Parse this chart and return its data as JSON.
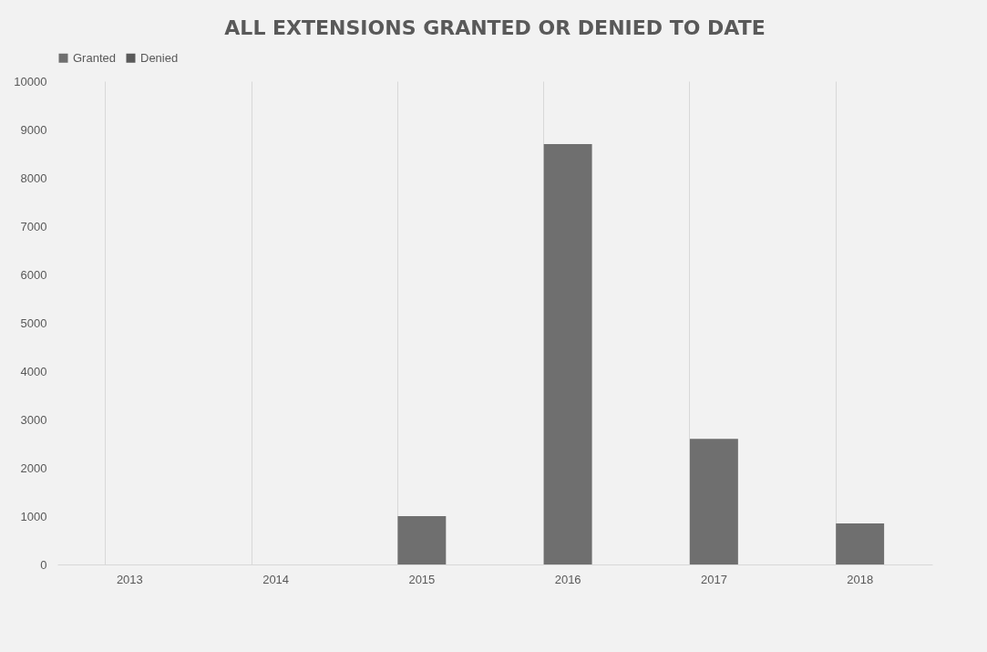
{
  "chart_data": {
    "type": "bar",
    "title": "ALL EXTENSIONS GRANTED OR DENIED TO DATE",
    "categories": [
      "2013",
      "2014",
      "2015",
      "2016",
      "2017",
      "2018"
    ],
    "series": [
      {
        "name": "Granted",
        "color": "#6f6f6f",
        "values": [
          0,
          0,
          1000,
          8700,
          2600,
          850
        ]
      },
      {
        "name": "Denied",
        "color": "#5a5a5a",
        "values": [
          0,
          0,
          0,
          0,
          0,
          0
        ]
      }
    ],
    "stacked": true,
    "ylim": [
      0,
      10000
    ],
    "yticks": [
      0,
      1000,
      2000,
      3000,
      4000,
      5000,
      6000,
      7000,
      8000,
      9000,
      10000
    ],
    "grid": "x",
    "legend": "top"
  }
}
